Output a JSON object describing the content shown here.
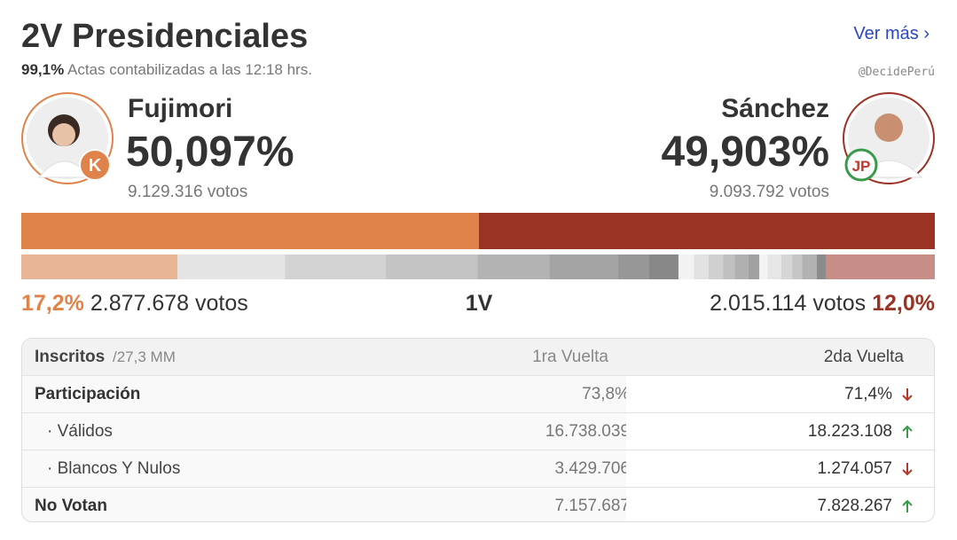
{
  "header": {
    "title": "2V Presidenciales",
    "link": "Ver más",
    "count_percent": "99,1%",
    "count_text": "Actas contabilizadas a las 12:18 hrs.",
    "source": "@DecidePerú"
  },
  "candidates": [
    {
      "name": "Fujimori",
      "percent": 50.097,
      "percent_label": "50,097%",
      "votes": "9.129.316 votos",
      "color": "#e0834a",
      "logo": "K"
    },
    {
      "name": "Sánchez",
      "percent": 49.903,
      "percent_label": "49,903%",
      "votes": "9.093.792 votos",
      "color": "#9b3324",
      "logo": "JP"
    }
  ],
  "first_round": {
    "label": "1V",
    "left": {
      "percent": 17.2,
      "percent_label": "17,2%",
      "votes": "2.877.678 votos",
      "color": "#e9b597",
      "label_color": "#e0834a"
    },
    "others": [
      {
        "value": 11.8,
        "color": "#e4e4e4"
      },
      {
        "value": 11.1,
        "color": "#d3d3d3"
      },
      {
        "value": 10.1,
        "color": "#c4c4c4"
      },
      {
        "value": 7.9,
        "color": "#b3b3b3"
      },
      {
        "value": 7.5,
        "color": "#a4a4a4"
      },
      {
        "value": 3.4,
        "color": "#979797"
      },
      {
        "value": 3.3,
        "color": "#888888"
      },
      {
        "value": 1.7,
        "color": "#f2f2f2"
      },
      {
        "value": 1.6,
        "color": "#e2e2e2"
      },
      {
        "value": 1.6,
        "color": "#d0d0d0"
      },
      {
        "value": 1.3,
        "color": "#c0c0c0"
      },
      {
        "value": 1.5,
        "color": "#b0b0b0"
      },
      {
        "value": 1.2,
        "color": "#a0a0a0"
      },
      {
        "value": 0.9,
        "color": "#f4f4f4"
      },
      {
        "value": 1.5,
        "color": "#e6e6e6"
      },
      {
        "value": 1.2,
        "color": "#d6d6d6"
      },
      {
        "value": 1.1,
        "color": "#c6c6c6"
      },
      {
        "value": 1.6,
        "color": "#b2b2b2"
      },
      {
        "value": 1.0,
        "color": "#8c8c8c"
      }
    ],
    "right": {
      "percent": 12.0,
      "percent_label": "12,0%",
      "votes": "2.015.114 votos",
      "color": "#c68e86",
      "label_color": "#9b3324"
    }
  },
  "table": {
    "header": [
      "Inscritos",
      "/27,3 MM",
      "1ra Vuelta",
      "2da Vuelta"
    ],
    "rows": [
      {
        "label": "Participación",
        "first": "73,8%",
        "second": "71,4%",
        "trend": "down",
        "bold": true
      },
      {
        "label": "· Válidos",
        "first": "16.738.039",
        "second": "18.223.108",
        "trend": "up",
        "bold": false
      },
      {
        "label": "· Blancos Y Nulos",
        "first": "3.429.706",
        "second": "1.274.057",
        "trend": "down",
        "bold": false
      },
      {
        "label": "No Votan",
        "first": "7.157.687",
        "second": "7.828.267",
        "trend": "up",
        "bold": true
      }
    ]
  }
}
